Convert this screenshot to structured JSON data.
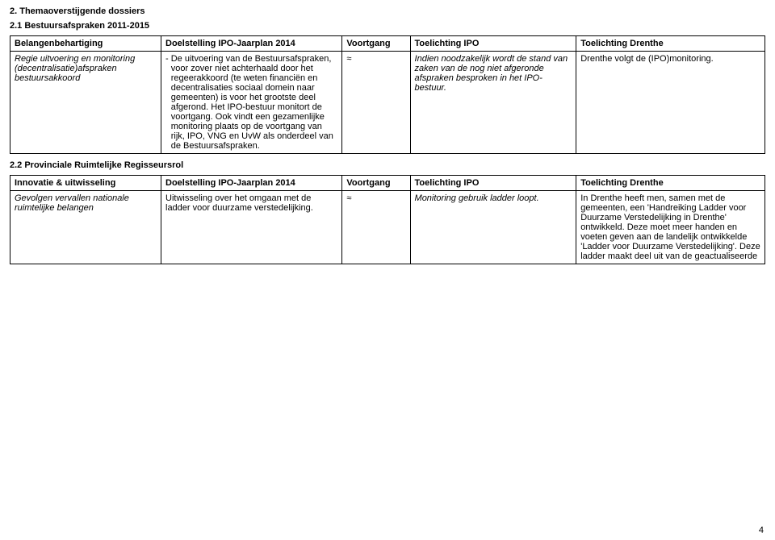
{
  "section_heading": "2. Themaoverstijgende dossiers",
  "section21_heading": "2.1 Bestuursafspraken 2011-2015",
  "table1": {
    "header": {
      "col1": "Belangenbehartiging",
      "col2": "Doelstelling IPO-Jaarplan 2014",
      "col3": "Voortgang",
      "col4": "Toelichting IPO",
      "col5": "Toelichting Drenthe"
    },
    "row": {
      "col1": "Regie uitvoering en monitoring (decentralisatie)afspraken bestuursakkoord",
      "col2_prefix": "- ",
      "col2": "De uitvoering van de Bestuursafspraken, voor zover niet achterhaald door het regeerakkoord (te weten financiën en decentralisaties sociaal domein naar gemeenten) is voor het grootste deel afgerond. Het IPO-bestuur monitort de voortgang. Ook vindt een gezamenlijke monitoring plaats op de voortgang van rijk, IPO, VNG en UvW als onderdeel van de Bestuursafspraken.",
      "col3": "≈",
      "col4": "Indien noodzakelijk wordt de stand van zaken van de nog niet afgeronde afspraken besproken in het IPO-bestuur.",
      "col5": "Drenthe volgt de (IPO)monitoring."
    }
  },
  "section22_heading": "2.2 Provinciale Ruimtelijke Regisseursrol",
  "table2": {
    "header": {
      "col1": "Innovatie & uitwisseling",
      "col2": "Doelstelling IPO-Jaarplan 2014",
      "col3": "Voortgang",
      "col4": "Toelichting IPO",
      "col5": "Toelichting Drenthe"
    },
    "row": {
      "col1": "Gevolgen vervallen nationale ruimtelijke belangen",
      "col2": "Uitwisseling over het omgaan met de ladder voor duurzame verstedelijking.",
      "col3": "≈",
      "col4": "Monitoring gebruik ladder loopt.",
      "col5": "In Drenthe heeft men, samen met de gemeenten, een 'Handreiking Ladder voor Duurzame Verstedelijking in Drenthe' ontwikkeld. Deze moet meer handen en voeten geven aan de landelijk ontwikkelde 'Ladder voor Duurzame Verstedelijking'. Deze ladder maakt deel uit van de geactualiseerde"
    }
  },
  "page_number": "4"
}
